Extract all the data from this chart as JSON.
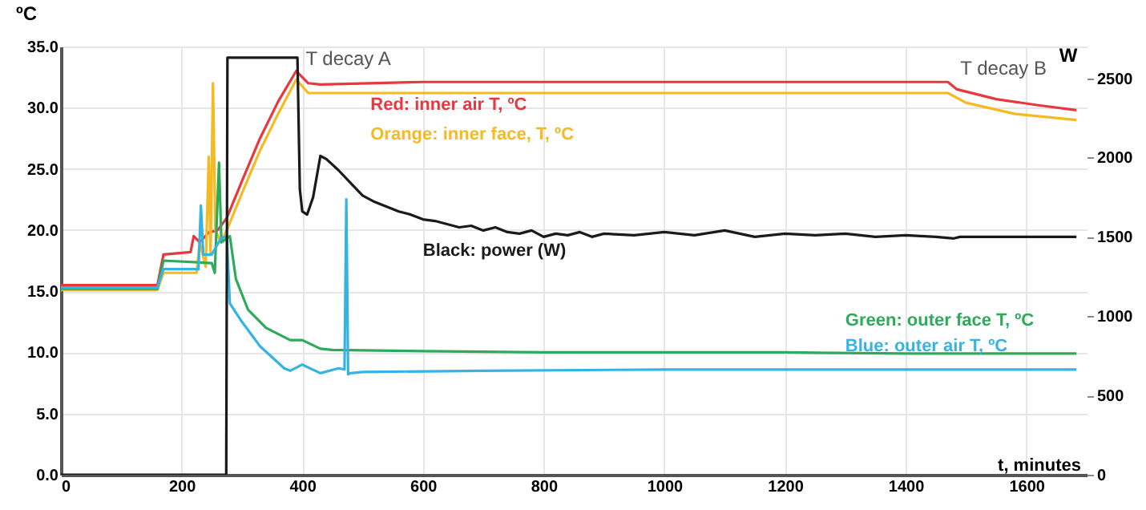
{
  "chart_data": {
    "type": "line",
    "xlabel": "t, minutes",
    "ylabel": "ºC",
    "y2label": "W",
    "xlim": [
      0,
      1700
    ],
    "xticks": [
      0,
      200,
      400,
      600,
      800,
      1000,
      1200,
      1400,
      1600
    ],
    "ylim": [
      0,
      35
    ],
    "yticks": [
      {
        "value": 0,
        "label": "0.0"
      },
      {
        "value": 5,
        "label": "5.0"
      },
      {
        "value": 10,
        "label": "10.0"
      },
      {
        "value": 15,
        "label": "15.0"
      },
      {
        "value": 20,
        "label": "20.0"
      },
      {
        "value": 25,
        "label": "25.0"
      },
      {
        "value": 30,
        "label": "30.0"
      },
      {
        "value": 35,
        "label": "35.0"
      }
    ],
    "y2lim": [
      0,
      2700
    ],
    "y2ticks": [
      0,
      500,
      1000,
      1500,
      2000,
      2500
    ],
    "grid": true,
    "marker": "none",
    "line_style": "solid",
    "annotations": [
      {
        "text": "T decay A",
        "x": 395,
        "y": 34
      },
      "T decay B"
    ],
    "series": [
      {
        "name": "Red: inner air T, ºC",
        "color": "#e8383d",
        "x": [
          0,
          160,
          170,
          215,
          220,
          230,
          245,
          260,
          275,
          300,
          330,
          360,
          390,
          410,
          430,
          600,
          800,
          1000,
          1200,
          1470,
          1485,
          1550,
          1620,
          1683
        ],
        "values": [
          15.5,
          15.5,
          18,
          18.2,
          19.5,
          19,
          19.8,
          20,
          21,
          24,
          27.5,
          30.5,
          33,
          32,
          31.9,
          32.1,
          32.1,
          32.1,
          32.1,
          32.1,
          31.5,
          30.7,
          30.2,
          29.8
        ]
      },
      {
        "name": "Orange: inner face, T, ºC",
        "color": "#f5b921",
        "x": [
          0,
          160,
          170,
          225,
          230,
          240,
          245,
          248,
          252,
          256,
          265,
          275,
          300,
          330,
          360,
          390,
          410,
          600,
          800,
          1000,
          1200,
          1470,
          1500,
          1580,
          1683
        ],
        "values": [
          15.1,
          15.1,
          16.5,
          16.5,
          19,
          17,
          26,
          18,
          32,
          20,
          19,
          20,
          23,
          26.5,
          29.5,
          32.3,
          31.2,
          31.2,
          31.2,
          31.2,
          31.2,
          31.2,
          30.4,
          29.5,
          29
        ]
      },
      {
        "name": "Black: power (W)",
        "color": "#1a1a1a",
        "axis": "y2",
        "x": [
          0,
          274,
          276,
          300,
          330,
          360,
          392,
          396,
          400,
          408,
          418,
          430,
          440,
          460,
          480,
          500,
          520,
          540,
          560,
          580,
          600,
          620,
          640,
          660,
          680,
          700,
          720,
          740,
          760,
          780,
          800,
          820,
          840,
          860,
          880,
          900,
          950,
          1000,
          1050,
          1100,
          1150,
          1200,
          1250,
          1300,
          1350,
          1400,
          1450,
          1480,
          1490,
          1550,
          1600,
          1683
        ],
        "values": [
          0,
          0,
          2630,
          2630,
          2630,
          2630,
          2630,
          1800,
          1660,
          1640,
          1750,
          2010,
          1990,
          1920,
          1840,
          1760,
          1720,
          1690,
          1660,
          1640,
          1610,
          1600,
          1580,
          1560,
          1570,
          1540,
          1560,
          1530,
          1520,
          1540,
          1500,
          1520,
          1510,
          1530,
          1500,
          1520,
          1510,
          1530,
          1510,
          1540,
          1500,
          1520,
          1510,
          1520,
          1500,
          1510,
          1500,
          1490,
          1500,
          1500,
          1500,
          1500
        ]
      },
      {
        "name": "Green: outer face T, ºC",
        "color": "#2eaa5c",
        "x": [
          0,
          160,
          170,
          250,
          255,
          262,
          266,
          280,
          290,
          310,
          340,
          380,
          400,
          430,
          450,
          600,
          800,
          1000,
          1200,
          1400,
          1683
        ],
        "values": [
          15.2,
          15.2,
          17.5,
          17.3,
          16.5,
          25.5,
          19,
          19.5,
          16,
          13.5,
          12,
          11,
          11,
          10.3,
          10.2,
          10.1,
          10,
          10,
          10,
          9.9,
          9.9
        ]
      },
      {
        "name": "Blue: outer air T, ºC",
        "color": "#35b4e4",
        "x": [
          0,
          160,
          170,
          228,
          232,
          236,
          250,
          265,
          275,
          280,
          300,
          330,
          370,
          380,
          400,
          430,
          460,
          470,
          473,
          476,
          480,
          500,
          700,
          1000,
          1300,
          1683
        ],
        "values": [
          15.3,
          15.3,
          16.8,
          16.8,
          22,
          18,
          18,
          19.3,
          19.5,
          14,
          12.5,
          10.5,
          8.7,
          8.5,
          9,
          8.3,
          8.7,
          8.6,
          22.5,
          8.2,
          8.3,
          8.4,
          8.5,
          8.6,
          8.6,
          8.6
        ]
      }
    ]
  }
}
